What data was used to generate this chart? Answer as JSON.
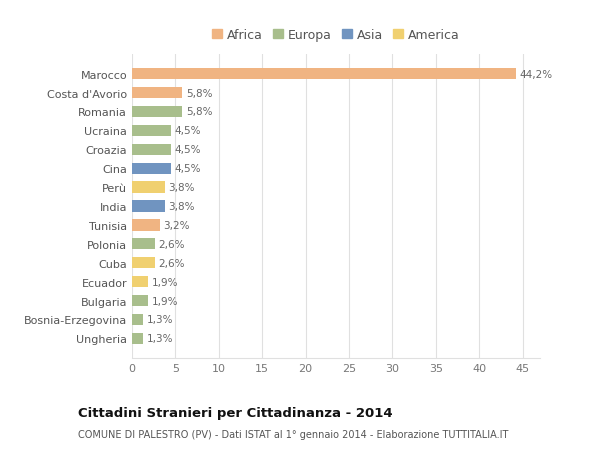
{
  "categories": [
    "Marocco",
    "Costa d'Avorio",
    "Romania",
    "Ucraina",
    "Croazia",
    "Cina",
    "Perù",
    "India",
    "Tunisia",
    "Polonia",
    "Cuba",
    "Ecuador",
    "Bulgaria",
    "Bosnia-Erzegovina",
    "Ungheria"
  ],
  "values": [
    44.2,
    5.8,
    5.8,
    4.5,
    4.5,
    4.5,
    3.8,
    3.8,
    3.2,
    2.6,
    2.6,
    1.9,
    1.9,
    1.3,
    1.3
  ],
  "labels": [
    "44,2%",
    "5,8%",
    "5,8%",
    "4,5%",
    "4,5%",
    "4,5%",
    "3,8%",
    "3,8%",
    "3,2%",
    "2,6%",
    "2,6%",
    "1,9%",
    "1,9%",
    "1,3%",
    "1,3%"
  ],
  "colors": [
    "#f0b482",
    "#f0b482",
    "#a8be8c",
    "#a8be8c",
    "#a8be8c",
    "#7094c0",
    "#f0d070",
    "#7094c0",
    "#f0b482",
    "#a8be8c",
    "#f0d070",
    "#f0d070",
    "#a8be8c",
    "#a8be8c",
    "#a8be8c"
  ],
  "continent_colors": {
    "Africa": "#f0b482",
    "Europa": "#a8be8c",
    "Asia": "#7094c0",
    "America": "#f0d070"
  },
  "title": "Cittadini Stranieri per Cittadinanza - 2014",
  "subtitle": "COMUNE DI PALESTRO (PV) - Dati ISTAT al 1° gennaio 2014 - Elaborazione TUTTITALIA.IT",
  "xlim": [
    0,
    47
  ],
  "xticks": [
    0,
    5,
    10,
    15,
    20,
    25,
    30,
    35,
    40,
    45
  ],
  "background_color": "#ffffff",
  "plot_background": "#ffffff",
  "grid_color": "#e0e0e0"
}
